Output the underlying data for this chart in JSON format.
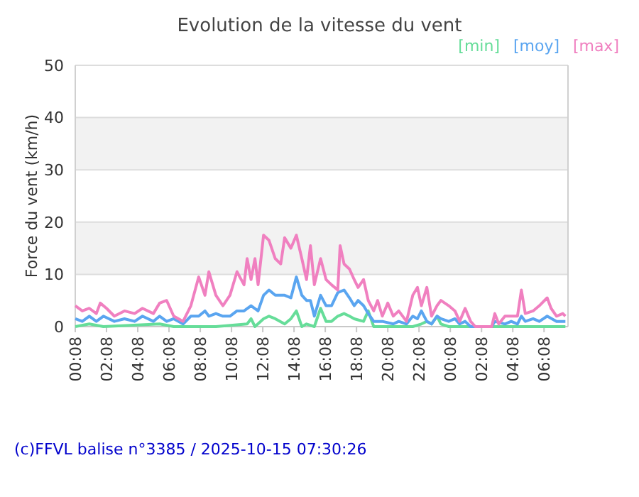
{
  "chart_data": {
    "type": "line",
    "title": "Evolution de la vitesse du vent",
    "ylabel": "Force du vent (km/h)",
    "annotations": [
      "(c)FFVL balise n°3385 / 2025-10-15 07:30:26"
    ],
    "xlim": [
      "2025-10-14T00:08",
      "2025-10-15T07:40"
    ],
    "xticks": [
      {
        "value": "2025-10-14T00:08",
        "label": "00:08"
      },
      {
        "value": "2025-10-14T02:08",
        "label": "02:08"
      },
      {
        "value": "2025-10-14T04:08",
        "label": "04:08"
      },
      {
        "value": "2025-10-14T06:08",
        "label": "06:08"
      },
      {
        "value": "2025-10-14T08:08",
        "label": "08:08"
      },
      {
        "value": "2025-10-14T10:08",
        "label": "10:08"
      },
      {
        "value": "2025-10-14T12:08",
        "label": "12:08"
      },
      {
        "value": "2025-10-14T14:08",
        "label": "14:08"
      },
      {
        "value": "2025-10-14T16:08",
        "label": "16:08"
      },
      {
        "value": "2025-10-14T18:08",
        "label": "18:08"
      },
      {
        "value": "2025-10-14T20:08",
        "label": "20:08"
      },
      {
        "value": "2025-10-14T22:08",
        "label": "22:08"
      },
      {
        "value": "2025-10-15T00:08",
        "label": "00:08"
      },
      {
        "value": "2025-10-15T02:08",
        "label": "02:08"
      },
      {
        "value": "2025-10-15T04:08",
        "label": "04:08"
      },
      {
        "value": "2025-10-15T06:08",
        "label": "06:08"
      }
    ],
    "ylim": [
      0,
      50
    ],
    "yticks": [
      0,
      10,
      20,
      30,
      40,
      50
    ],
    "grid": "y",
    "legend": "top right",
    "marker": "none",
    "line_style": "solid",
    "series": [
      {
        "name": "[min]",
        "color": "#66dd99",
        "x": [
          "2025-10-14T00:08",
          "2025-10-14T01:02",
          "2025-10-14T01:56",
          "2025-10-14T05:32",
          "2025-10-14T06:26",
          "2025-10-14T09:08",
          "2025-10-14T11:08",
          "2025-10-14T11:23",
          "2025-10-14T11:38",
          "2025-10-14T12:11",
          "2025-10-14T12:32",
          "2025-10-14T12:56",
          "2025-10-14T13:32",
          "2025-10-14T13:56",
          "2025-10-14T14:17",
          "2025-10-14T14:38",
          "2025-10-14T14:56",
          "2025-10-14T15:26",
          "2025-10-14T15:50",
          "2025-10-14T16:11",
          "2025-10-14T16:32",
          "2025-10-14T16:56",
          "2025-10-14T17:20",
          "2025-10-14T17:41",
          "2025-10-14T17:59",
          "2025-10-14T18:35",
          "2025-10-14T18:53",
          "2025-10-14T19:14",
          "2025-10-14T21:44",
          "2025-10-14T22:17",
          "2025-10-14T22:38",
          "2025-10-14T22:56",
          "2025-10-14T23:17",
          "2025-10-14T23:32",
          "2025-10-15T00:02",
          "2025-10-15T07:30"
        ],
        "values": [
          0,
          0.5,
          0,
          0.5,
          0,
          0,
          0.5,
          1.5,
          0,
          1.5,
          2,
          1.5,
          0.5,
          1.5,
          3,
          0,
          0.5,
          0,
          3.5,
          1,
          1,
          2,
          2.5,
          2,
          1.5,
          1,
          3,
          0,
          0,
          0.5,
          1,
          0.5,
          2,
          0.5,
          0,
          0
        ]
      },
      {
        "name": "[moy]",
        "color": "#5aa5f0",
        "x": [
          "2025-10-14T00:08",
          "2025-10-14T00:35",
          "2025-10-14T01:02",
          "2025-10-14T01:29",
          "2025-10-14T01:56",
          "2025-10-14T02:38",
          "2025-10-14T03:17",
          "2025-10-14T03:56",
          "2025-10-14T04:26",
          "2025-10-14T05:08",
          "2025-10-14T05:32",
          "2025-10-14T05:59",
          "2025-10-14T06:26",
          "2025-10-14T07:02",
          "2025-10-14T07:32",
          "2025-10-14T08:02",
          "2025-10-14T08:26",
          "2025-10-14T08:41",
          "2025-10-14T09:08",
          "2025-10-14T09:35",
          "2025-10-14T10:02",
          "2025-10-14T10:29",
          "2025-10-14T10:56",
          "2025-10-14T11:23",
          "2025-10-14T11:50",
          "2025-10-14T12:11",
          "2025-10-14T12:32",
          "2025-10-14T12:56",
          "2025-10-14T13:32",
          "2025-10-14T13:56",
          "2025-10-14T14:17",
          "2025-10-14T14:38",
          "2025-10-14T14:56",
          "2025-10-14T15:11",
          "2025-10-14T15:26",
          "2025-10-14T15:50",
          "2025-10-14T16:11",
          "2025-10-14T16:32",
          "2025-10-14T16:56",
          "2025-10-14T17:20",
          "2025-10-14T17:41",
          "2025-10-14T17:59",
          "2025-10-14T18:14",
          "2025-10-14T18:35",
          "2025-10-14T18:53",
          "2025-10-14T19:14",
          "2025-10-14T19:47",
          "2025-10-14T20:29",
          "2025-10-14T20:50",
          "2025-10-14T21:20",
          "2025-10-14T21:44",
          "2025-10-14T22:02",
          "2025-10-14T22:17",
          "2025-10-14T22:38",
          "2025-10-14T22:56",
          "2025-10-14T23:17",
          "2025-10-14T23:32",
          "2025-10-15T00:02",
          "2025-10-15T00:26",
          "2025-10-15T00:44",
          "2025-10-15T01:05",
          "2025-10-15T01:26",
          "2025-10-15T02:47",
          "2025-10-15T02:59",
          "2025-10-15T03:38",
          "2025-10-15T04:02",
          "2025-10-15T04:26",
          "2025-10-15T04:41",
          "2025-10-15T04:56",
          "2025-10-15T05:26",
          "2025-10-15T05:50",
          "2025-10-15T06:20",
          "2025-10-15T06:56",
          "2025-10-15T07:30"
        ],
        "values": [
          1.5,
          1,
          2,
          1,
          2,
          1,
          1.5,
          1,
          2,
          1,
          2,
          1,
          1.5,
          0.5,
          2,
          2,
          3,
          2,
          2.5,
          2,
          2,
          3,
          3,
          4,
          3,
          6,
          7,
          6,
          6,
          5.5,
          9.5,
          6,
          5,
          5,
          2,
          6,
          4,
          4,
          6.5,
          7,
          5.5,
          4,
          5,
          4,
          2.5,
          1,
          1,
          0.5,
          1,
          0.5,
          2,
          1.5,
          3,
          1,
          0.5,
          2,
          1.5,
          1,
          1.5,
          0.5,
          1,
          0,
          0,
          1,
          0.5,
          1,
          0.5,
          2,
          1,
          1.5,
          1,
          2,
          1,
          1
        ]
      },
      {
        "name": "[max]",
        "color": "#f080c0",
        "x": [
          "2025-10-14T00:08",
          "2025-10-14T00:35",
          "2025-10-14T01:02",
          "2025-10-14T01:29",
          "2025-10-14T01:44",
          "2025-10-14T02:08",
          "2025-10-14T02:38",
          "2025-10-14T03:17",
          "2025-10-14T03:56",
          "2025-10-14T04:26",
          "2025-10-14T05:08",
          "2025-10-14T05:32",
          "2025-10-14T05:59",
          "2025-10-14T06:26",
          "2025-10-14T07:02",
          "2025-10-14T07:32",
          "2025-10-14T08:02",
          "2025-10-14T08:26",
          "2025-10-14T08:41",
          "2025-10-14T09:08",
          "2025-10-14T09:35",
          "2025-10-14T10:02",
          "2025-10-14T10:29",
          "2025-10-14T10:56",
          "2025-10-14T11:08",
          "2025-10-14T11:23",
          "2025-10-14T11:38",
          "2025-10-14T11:50",
          "2025-10-14T12:11",
          "2025-10-14T12:32",
          "2025-10-14T12:56",
          "2025-10-14T13:17",
          "2025-10-14T13:32",
          "2025-10-14T13:56",
          "2025-10-14T14:17",
          "2025-10-14T14:38",
          "2025-10-14T14:56",
          "2025-10-14T15:11",
          "2025-10-14T15:26",
          "2025-10-14T15:50",
          "2025-10-14T16:11",
          "2025-10-14T16:32",
          "2025-10-14T16:56",
          "2025-10-14T17:05",
          "2025-10-14T17:20",
          "2025-10-14T17:41",
          "2025-10-14T17:59",
          "2025-10-14T18:14",
          "2025-10-14T18:35",
          "2025-10-14T18:53",
          "2025-10-14T19:14",
          "2025-10-14T19:29",
          "2025-10-14T19:47",
          "2025-10-14T20:08",
          "2025-10-14T20:29",
          "2025-10-14T20:50",
          "2025-10-14T21:20",
          "2025-10-14T21:44",
          "2025-10-14T22:02",
          "2025-10-14T22:17",
          "2025-10-14T22:38",
          "2025-10-14T22:56",
          "2025-10-14T23:17",
          "2025-10-14T23:32",
          "2025-10-15T00:02",
          "2025-10-15T00:26",
          "2025-10-15T00:44",
          "2025-10-15T01:05",
          "2025-10-15T01:26",
          "2025-10-15T01:44",
          "2025-10-15T02:47",
          "2025-10-15T02:59",
          "2025-10-15T03:14",
          "2025-10-15T03:38",
          "2025-10-15T04:02",
          "2025-10-15T04:26",
          "2025-10-15T04:41",
          "2025-10-15T04:56",
          "2025-10-15T05:26",
          "2025-10-15T05:50",
          "2025-10-15T06:20",
          "2025-10-15T06:35",
          "2025-10-15T06:56",
          "2025-10-15T07:20",
          "2025-10-15T07:30"
        ],
        "values": [
          4,
          3,
          3.5,
          2.5,
          4.5,
          3.5,
          2,
          3,
          2.5,
          3.5,
          2.5,
          4.5,
          5,
          2,
          1,
          4,
          9.5,
          6,
          10.5,
          6,
          4,
          6,
          10.5,
          8,
          13,
          9,
          13,
          8,
          17.5,
          16.5,
          13,
          12,
          17,
          15,
          17.5,
          13,
          9,
          15.5,
          8,
          13,
          9,
          8,
          7,
          15.5,
          12,
          11,
          9,
          7.5,
          9,
          5,
          3,
          5,
          2,
          4.5,
          2,
          3,
          1,
          6,
          7.5,
          4,
          7.5,
          2,
          4,
          5,
          4,
          3,
          1,
          3.5,
          1,
          0,
          0,
          2.5,
          0.5,
          2,
          2,
          2,
          7,
          2.5,
          3,
          4,
          5.5,
          3.5,
          2,
          2.5,
          2
        ]
      }
    ]
  }
}
